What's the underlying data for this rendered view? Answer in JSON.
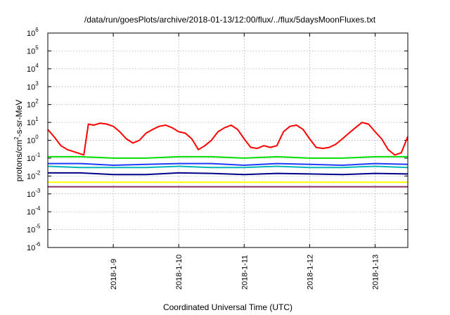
{
  "chart_data": {
    "type": "line",
    "title": "/data/run/goesPlots/archive/2018-01-13/12:00/flux/../flux/5daysMoonFluxes.txt",
    "xlabel": "Coordinated Universal Time (UTC)",
    "ylabel": "protons/cm2-s-sr-MeV",
    "ylabel_parts": {
      "pre": "protons/cm",
      "sup": "2",
      "post": "-s-sr-MeV"
    },
    "yscale": "log",
    "ylim_exp": [
      -6,
      6
    ],
    "xlim_days": [
      0,
      5.5
    ],
    "xtick_labels": [
      "2018-1-9",
      "2018-1-10",
      "2018-1-11",
      "2018-1-12",
      "2018-1-13"
    ],
    "xtick_days": [
      1,
      2,
      3,
      4,
      5
    ],
    "ytick_labels": [
      "10",
      "10",
      "10",
      "10",
      "10",
      "10",
      "10",
      "10",
      "10",
      "10",
      "10",
      "10",
      "10"
    ],
    "ytick_exponents": [
      "-6",
      "-5",
      "-4",
      "-3",
      "-2",
      "-1",
      "0",
      "1",
      "2",
      "3",
      "4",
      "5",
      "6"
    ],
    "grid": true,
    "series": [
      {
        "color": "#ff0000",
        "x": [
          0,
          0.1,
          0.2,
          0.3,
          0.45,
          0.55,
          0.62,
          0.7,
          0.8,
          0.9,
          1.0,
          1.1,
          1.2,
          1.3,
          1.4,
          1.5,
          1.6,
          1.7,
          1.8,
          1.9,
          2.0,
          2.1,
          2.2,
          2.3,
          2.4,
          2.5,
          2.6,
          2.7,
          2.8,
          2.9,
          3.0,
          3.1,
          3.2,
          3.3,
          3.4,
          3.5,
          3.6,
          3.7,
          3.8,
          3.9,
          4.0,
          4.1,
          4.2,
          4.3,
          4.4,
          4.5,
          4.6,
          4.7,
          4.8,
          4.9,
          5.0,
          5.1,
          5.2,
          5.3,
          5.4,
          5.5
        ],
        "y": [
          4,
          1.5,
          0.5,
          0.3,
          0.2,
          0.15,
          8,
          7,
          9,
          8,
          6,
          3,
          1.2,
          0.7,
          1,
          2.5,
          4,
          6,
          7,
          5,
          3,
          2.5,
          1.2,
          0.3,
          0.5,
          1,
          3,
          5,
          7,
          4,
          1.2,
          0.4,
          0.35,
          0.5,
          0.4,
          0.5,
          3,
          6,
          7,
          4,
          1.2,
          0.4,
          0.35,
          0.4,
          0.6,
          1.2,
          2.5,
          5,
          10,
          8,
          3,
          1.2,
          0.3,
          0.15,
          0.2,
          1.6
        ]
      },
      {
        "color": "#00e000",
        "x": [
          0,
          0.5,
          1,
          1.5,
          2,
          2.5,
          3,
          3.5,
          4,
          4.5,
          5,
          5.5
        ],
        "y": [
          0.12,
          0.12,
          0.1,
          0.1,
          0.12,
          0.12,
          0.1,
          0.12,
          0.1,
          0.1,
          0.12,
          0.12
        ]
      },
      {
        "color": "#00b8b8",
        "x": [
          0,
          0.5,
          1,
          1.5,
          2,
          2.5,
          3,
          3.5,
          4,
          4.5,
          5,
          5.5
        ],
        "y": [
          0.035,
          0.03,
          0.03,
          0.03,
          0.035,
          0.03,
          0.03,
          0.035,
          0.03,
          0.03,
          0.035,
          0.03
        ]
      },
      {
        "color": "#1e3cff",
        "x": [
          0,
          0.5,
          1,
          1.5,
          2,
          2.5,
          3,
          3.5,
          4,
          4.5,
          5,
          5.5
        ],
        "y": [
          0.05,
          0.05,
          0.04,
          0.045,
          0.05,
          0.05,
          0.04,
          0.05,
          0.045,
          0.04,
          0.05,
          0.045
        ]
      },
      {
        "color": "#00008b",
        "x": [
          0,
          0.5,
          1,
          1.5,
          2,
          2.5,
          3,
          3.5,
          4,
          4.5,
          5,
          5.5
        ],
        "y": [
          0.015,
          0.015,
          0.012,
          0.012,
          0.015,
          0.014,
          0.012,
          0.014,
          0.013,
          0.012,
          0.014,
          0.013
        ]
      },
      {
        "color": "#ffff00",
        "x": [
          0,
          0.5,
          1,
          1.5,
          2,
          2.5,
          3,
          3.5,
          4,
          4.5,
          5,
          5.5
        ],
        "y": [
          0.0045,
          0.0045,
          0.0045,
          0.0045,
          0.0045,
          0.0045,
          0.0045,
          0.0045,
          0.0045,
          0.0045,
          0.0045,
          0.0045
        ]
      },
      {
        "color": "#8b2e6b",
        "x": [
          0,
          0.5,
          1,
          1.5,
          2,
          2.5,
          3,
          3.5,
          4,
          4.5,
          5,
          5.5
        ],
        "y": [
          0.0025,
          0.0025,
          0.0025,
          0.0025,
          0.0025,
          0.0025,
          0.0025,
          0.0025,
          0.0025,
          0.0025,
          0.0025,
          0.0025
        ]
      }
    ]
  }
}
